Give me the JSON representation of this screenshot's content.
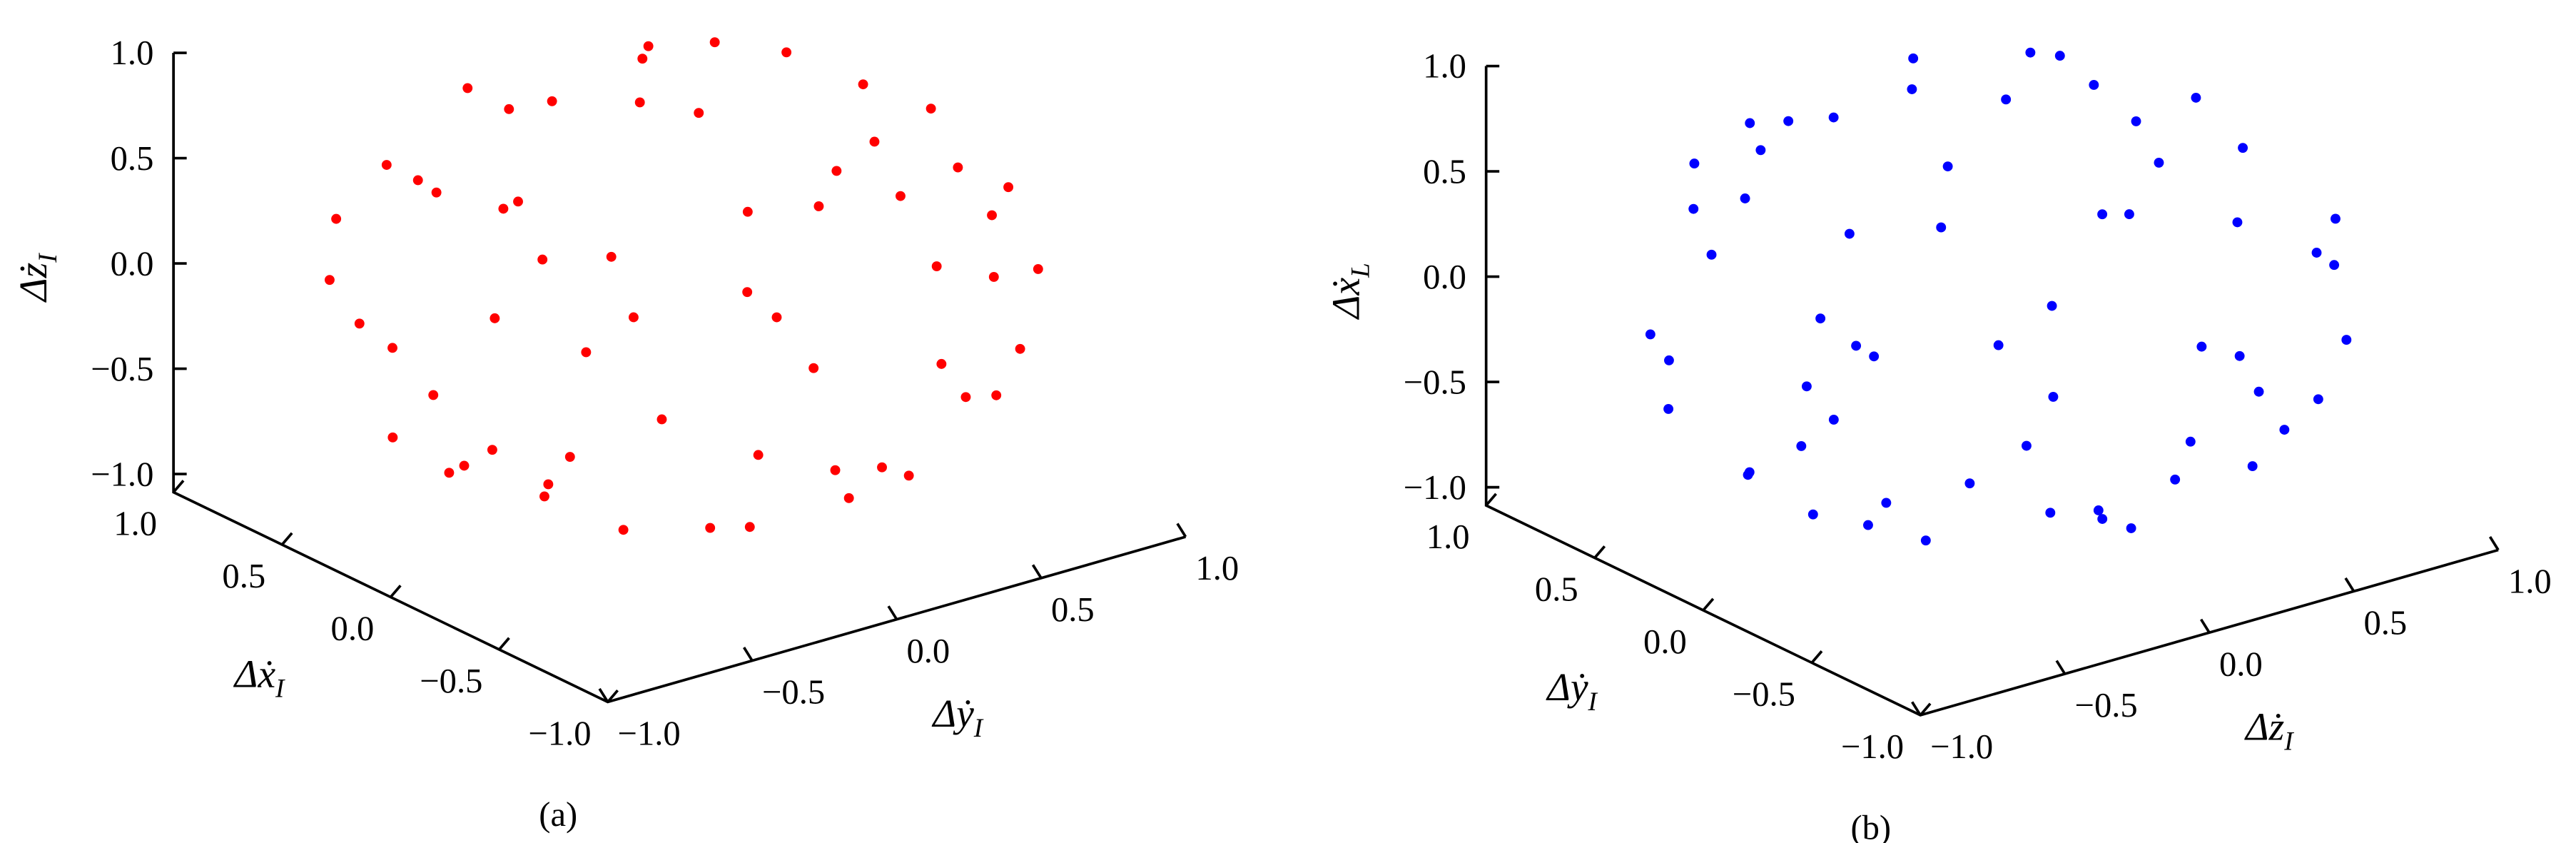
{
  "chart_data": [
    {
      "type": "scatter3d",
      "color": "#ff0000",
      "xlabel": {
        "text": "Δẋ",
        "sub": "I"
      },
      "ylabel": {
        "text": "Δẏ",
        "sub": "I"
      },
      "zlabel": {
        "text": "Δż",
        "sub": "I"
      },
      "caption": "(a)",
      "xlim": [
        -1,
        1
      ],
      "ylim": [
        -1,
        1
      ],
      "zlim": [
        -1,
        1
      ],
      "xticks": [
        {
          "value": -1,
          "label": "−1.0"
        },
        {
          "value": -0.5,
          "label": "−0.5"
        },
        {
          "value": 0,
          "label": "0.0"
        },
        {
          "value": 0.5,
          "label": "0.5"
        },
        {
          "value": 1,
          "label": "1.0"
        }
      ],
      "yticks": [
        {
          "value": -1,
          "label": "−1.0"
        },
        {
          "value": -0.5,
          "label": "−0.5"
        },
        {
          "value": 0,
          "label": "0.0"
        },
        {
          "value": 0.5,
          "label": "0.5"
        },
        {
          "value": 1,
          "label": "1.0"
        }
      ],
      "zticks": [
        {
          "value": -1,
          "label": "−1.0"
        },
        {
          "value": -0.5,
          "label": "−0.5"
        },
        {
          "value": 0,
          "label": "0.0"
        },
        {
          "value": 0.5,
          "label": "0.5"
        },
        {
          "value": 1,
          "label": "1.0"
        }
      ],
      "x": [
        0.29,
        -0.18,
        -0.62,
        0.26,
        0.73,
        -0.68,
        -0.32,
        0.91,
        0.34,
        -0.98,
        -0.17,
        0.97,
        -0.17,
        -0.93,
        0.15,
        0.54,
        -0.71,
        -0.42,
        0.41,
        0.05,
        0.08,
        -0.59,
        -0.12,
        0.79,
        0,
        -0.86,
        0.61,
        0.75,
        -0.64,
        -0.77,
        0.76,
        0.49,
        -0.82,
        -0.46,
        0.75,
        -0.4,
        -0.62,
        0.3,
        -0.43,
        -0.07,
        0.24,
        0.49,
        -0.55,
        -0.64,
        0.92,
        -0.25,
        0.17,
        1,
        -0.81,
        -0.56,
        0.08,
        0.82,
        -0.07,
        -0.78,
        0.67,
        -0.4,
        0.13,
        -0.95,
        0.26,
        -0.34
      ],
      "y": [
        0.11,
        0.5,
        -0.23,
        -0.71,
        0.42,
        0.57,
        -0.88,
        -0.33,
        0.93,
        0.17,
        -0.98,
        0.17,
        0.96,
        -0.16,
        -0.88,
        0.64,
        0.26,
        -0.51,
        -0.34,
        0.31,
        0.43,
        0.1,
        -0.7,
        -0.14,
        0.87,
        -0.31,
        -0.73,
        0.63,
        0.76,
        -0.64,
        -0.64,
        0.85,
        0.48,
        -0.8,
        -0.43,
        0.69,
        -0.36,
        -0.52,
        -0.08,
        -0.19,
        -0.41,
        0.49,
        0.55,
        -0.64,
        0.25,
        0.95,
        -0.98,
        -0.09,
        0.57,
        -0.8,
        0.95,
        0.38,
        -0.85,
        0,
        0.18,
        0.4,
        -0.37,
        -0.25,
        0.96,
        -0.73
      ],
      "z": [
        0.95,
        0.85,
        0.75,
        0.65,
        0.55,
        0.45,
        0.35,
        0.25,
        0.15,
        0.05,
        -0.05,
        -0.15,
        -0.25,
        -0.35,
        -0.45,
        -0.55,
        -0.65,
        -0.75,
        -0.85,
        -0.95,
        0.9,
        0.8,
        0.7,
        0.6,
        0.5,
        0.4,
        0.3,
        0.2,
        0.1,
        0,
        -0.1,
        -0.2,
        -0.3,
        -0.4,
        -0.5,
        -0.6,
        -0.7,
        -0.8,
        -0.9,
        0.98,
        0.88,
        0.72,
        0.62,
        0.42,
        0.32,
        0.22,
        0.12,
        -0.02,
        -0.12,
        -0.22,
        -0.32,
        -0.42,
        -0.52,
        -0.62,
        -0.72,
        -0.82,
        -0.92,
        0.18,
        -0.08,
        0.58
      ]
    },
    {
      "type": "scatter3d",
      "color": "#0000ff",
      "xlabel": {
        "text": "Δẏ",
        "sub": "I"
      },
      "ylabel": {
        "text": "Δż",
        "sub": "I"
      },
      "zlabel": {
        "text": "Δẋ",
        "sub": "L"
      },
      "caption": "(b)",
      "xlim": [
        -1,
        1
      ],
      "ylim": [
        -1,
        1
      ],
      "zlim": [
        -1,
        1
      ],
      "xticks": [
        {
          "value": -1,
          "label": "−1.0"
        },
        {
          "value": -0.5,
          "label": "−0.5"
        },
        {
          "value": 0,
          "label": "0.0"
        },
        {
          "value": 0.5,
          "label": "0.5"
        },
        {
          "value": 1,
          "label": "1.0"
        }
      ],
      "yticks": [
        {
          "value": -1,
          "label": "−1.0"
        },
        {
          "value": -0.5,
          "label": "−0.5"
        },
        {
          "value": 0,
          "label": "0.0"
        },
        {
          "value": 0.5,
          "label": "0.5"
        },
        {
          "value": 1,
          "label": "1.0"
        }
      ],
      "zticks": [
        {
          "value": -1,
          "label": "−1.0"
        },
        {
          "value": -0.5,
          "label": "−0.5"
        },
        {
          "value": 0,
          "label": "0.0"
        },
        {
          "value": 0.5,
          "label": "0.5"
        },
        {
          "value": 1,
          "label": "1.0"
        }
      ],
      "x": [
        0.11,
        0.5,
        -0.23,
        -0.71,
        0.42,
        0.57,
        -0.88,
        -0.33,
        0.93,
        0.17,
        -0.98,
        0.17,
        0.96,
        -0.16,
        -0.88,
        0.64,
        0.26,
        -0.51,
        -0.34,
        0.31,
        0.43,
        0.1,
        -0.7,
        -0.14,
        0.87,
        -0.31,
        -0.73,
        0.63,
        0.76,
        -0.64,
        -0.64,
        0.85,
        0.48,
        -0.8,
        -0.43,
        0.69,
        -0.36,
        -0.52,
        -0.08,
        -0.19,
        -0.41,
        0.49,
        0.55,
        -0.64,
        0.25,
        0.95,
        -0.98,
        -0.09,
        0.57,
        -0.8,
        0.95,
        0.38,
        -0.85,
        0,
        0.18,
        0.4,
        -0.37,
        -0.25,
        0.96,
        -0.73
      ],
      "y": [
        0.95,
        0.85,
        0.75,
        0.65,
        0.55,
        0.45,
        0.35,
        0.25,
        0.15,
        0.05,
        -0.05,
        -0.15,
        -0.25,
        -0.35,
        -0.45,
        -0.55,
        -0.65,
        -0.75,
        -0.85,
        -0.95,
        0.9,
        0.8,
        0.7,
        0.6,
        0.5,
        0.4,
        0.3,
        0.2,
        0.1,
        0,
        -0.1,
        -0.2,
        -0.3,
        -0.4,
        -0.5,
        -0.6,
        -0.7,
        -0.8,
        -0.9,
        0.98,
        0.88,
        0.72,
        0.62,
        0.42,
        0.32,
        0.22,
        0.12,
        -0.02,
        -0.12,
        -0.22,
        -0.32,
        -0.42,
        -0.52,
        -0.62,
        -0.72,
        -0.82,
        -0.92,
        0.18,
        -0.08,
        0.58
      ],
      "z": [
        0.29,
        -0.18,
        -0.62,
        0.26,
        0.73,
        -0.68,
        -0.32,
        0.91,
        0.34,
        -0.98,
        -0.17,
        0.97,
        -0.17,
        -0.93,
        0.15,
        0.54,
        -0.71,
        -0.42,
        0.41,
        0.05,
        0.08,
        -0.59,
        -0.12,
        0.79,
        0,
        -0.86,
        0.61,
        0.75,
        -0.64,
        -0.77,
        0.76,
        0.49,
        -0.82,
        -0.46,
        0.75,
        -0.4,
        -0.62,
        0.3,
        -0.43,
        -0.07,
        0.24,
        0.49,
        -0.55,
        -0.64,
        0.92,
        -0.25,
        0.17,
        1,
        -0.81,
        -0.56,
        0.08,
        0.82,
        -0.07,
        -0.78,
        0.67,
        -0.4,
        0.13,
        -0.95,
        0.26,
        -0.34
      ]
    }
  ]
}
